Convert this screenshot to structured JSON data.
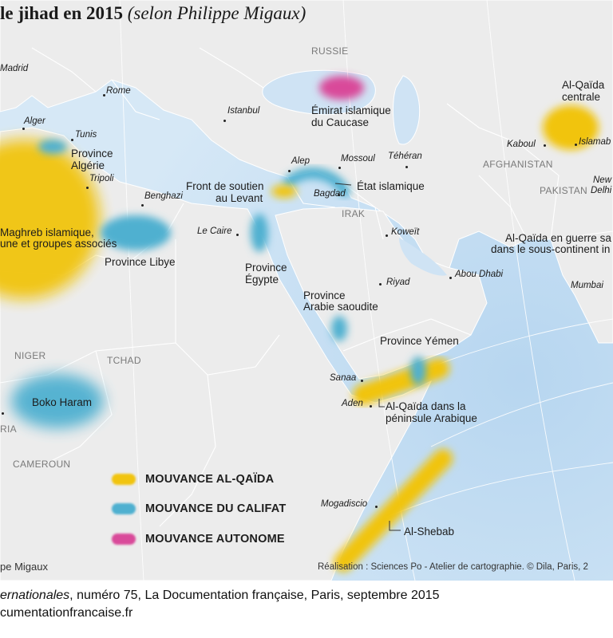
{
  "title": {
    "bold": "le jihad en 2015",
    "italic": "(selon Philippe Migaux)"
  },
  "countries": {
    "russie": "RUSSIE",
    "afghanistan": "AFGHANISTAN",
    "pakistan": "PAKISTAN",
    "irak": "IRAK",
    "niger": "NIGER",
    "tchad": "TCHAD",
    "cameroun": "CAMEROUN",
    "nigeria": "RIA"
  },
  "cities": {
    "madrid": "Madrid",
    "rome": "Rome",
    "istanbul": "Istanbul",
    "alger": "Alger",
    "tunis": "Tunis",
    "tripoli": "Tripoli",
    "benghazi": "Benghazi",
    "alep": "Alep",
    "mossoul": "Mossoul",
    "teheran": "Téhéran",
    "bagdad": "Bagdad",
    "kaboul": "Kaboul",
    "islamabad": "Islamab",
    "newdelhi_1": "New",
    "newdelhi_2": "Delhi",
    "le_caire": "Le Caire",
    "koweit": "Koweït",
    "riyad": "Riyad",
    "abou_dhabi": "Abou Dhabi",
    "mumbai": "Mumbai",
    "sanaa": "Sanaa",
    "aden": "Aden",
    "mogadiscio": "Mogadiscio"
  },
  "groups": {
    "aqc_1": "Al-Qaïda",
    "aqc_2": "centrale",
    "caucase_1": "Émirat islamique",
    "caucase_2": "du Caucase",
    "province_algerie_1": "Province",
    "province_algerie_2": "Algérie",
    "front_1": "Front de soutien",
    "front_2": "au Levant",
    "etat_islamique": "État islamique",
    "aqmi_1": "Maghreb islamique,",
    "aqmi_2": "une et groupes associés",
    "province_libye": "Province Libye",
    "province_egypte_1": "Province",
    "province_egypte_2": "Égypte",
    "aqis_1": "Al-Qaïda en guerre sa",
    "aqis_2": "dans le sous-continent in",
    "province_arabie_1": "Province",
    "province_arabie_2": "Arabie saoudite",
    "province_yemen": "Province Yémen",
    "aqpa_1": "Al-Qaïda dans la",
    "aqpa_2": "péninsule Arabique",
    "boko_haram": "Boko Haram",
    "al_shebab": "Al-Shebab"
  },
  "legend": [
    {
      "label": "MOUVANCE AL-QAÏDA",
      "color": "#f1c40f"
    },
    {
      "label": "MOUVANCE DU CALIFAT",
      "color": "#4fb0d0"
    },
    {
      "label": "MOUVANCE AUTONOME",
      "color": "#d94a9a"
    }
  ],
  "credits": {
    "left": "pe Migaux",
    "right": "Réalisation : Sciences Po - Atelier de cartographie. © Dila, Paris, 2"
  },
  "footer": {
    "line1_italic": "ernationales",
    "line1_rest": ", numéro 75, La Documentation française, Paris, septembre 2015",
    "line2": "cumentationfrancaise.fr"
  },
  "colors": {
    "al_qaida": "#f1c40f",
    "califat": "#4fb0d0",
    "autonome": "#d94a9a",
    "sea": "#cfe3f4",
    "land": "#ececec"
  }
}
